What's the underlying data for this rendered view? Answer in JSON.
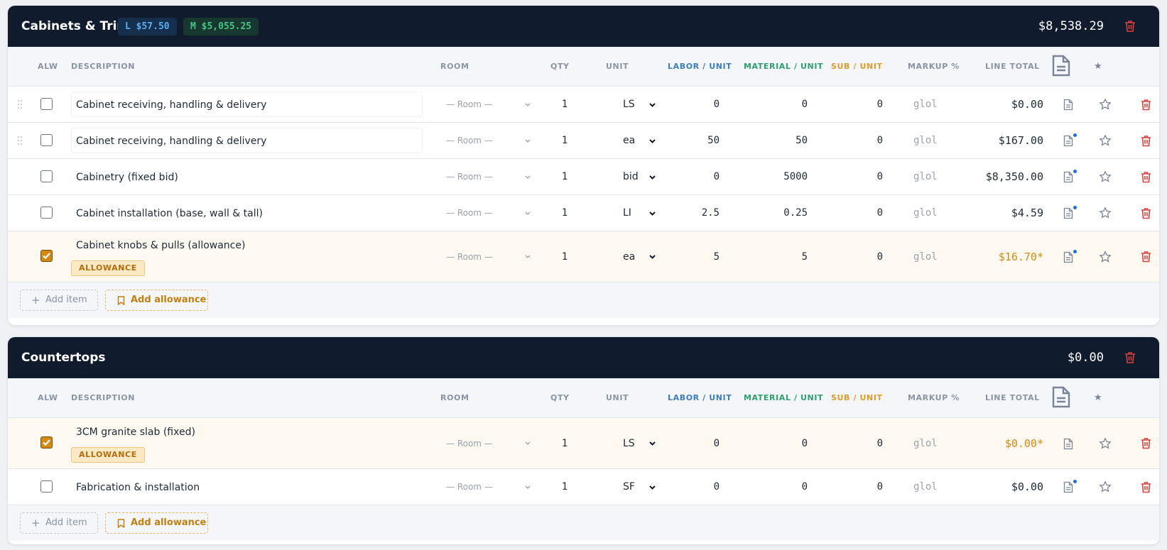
{
  "columns": {
    "alw": "ALW",
    "description": "DESCRIPTION",
    "room": "ROOM",
    "qty": "QTY",
    "unit": "UNIT",
    "labor": "LABOR / UNIT",
    "material": "MATERIAL / UNIT",
    "sub": "SUB / UNIT",
    "markup": "MARKUP %",
    "total": "LINE TOTAL",
    "star": "★"
  },
  "colors": {
    "header_bg": "#101b2d",
    "labor": "#3b7ec0",
    "material": "#2f9e6e",
    "sub": "#dd9c2c",
    "allowance": "#d38a12",
    "delete": "#d9413f"
  },
  "sections": [
    {
      "title": "Cabinets & Trim",
      "labor_chip": "L $57.50",
      "material_chip": "M $5,055.25",
      "total": "$8,538.29",
      "add_item": "Add item",
      "add_allowance": "Add allowance",
      "rows": [
        {
          "checked": false,
          "desc": "Cabinet receiving, handling & delivery",
          "room": "— Room —",
          "qty": "1",
          "unit": "LS",
          "labor": "0",
          "material": "0",
          "sub": "0",
          "markup": "glol",
          "total": "$0.00",
          "note_dot": false,
          "drag": true,
          "allowance": false
        },
        {
          "checked": false,
          "desc": "Cabinet receiving, handling & delivery",
          "room": "— Room —",
          "qty": "1",
          "unit": "ea",
          "labor": "50",
          "material": "50",
          "sub": "0",
          "markup": "glol",
          "total": "$167.00",
          "note_dot": true,
          "drag": true,
          "allowance": false
        },
        {
          "checked": false,
          "desc": "Cabinetry (fixed bid)",
          "room": "— Room —",
          "qty": "1",
          "unit": "bid",
          "labor": "0",
          "material": "5000",
          "sub": "0",
          "markup": "glol",
          "total": "$8,350.00",
          "note_dot": true,
          "drag": false,
          "allowance": false
        },
        {
          "checked": false,
          "desc": "Cabinet installation (base, wall & tall)",
          "room": "— Room —",
          "qty": "1",
          "unit": "LI",
          "labor": "2.5",
          "material": "0.25",
          "sub": "0",
          "markup": "glol",
          "total": "$4.59",
          "note_dot": true,
          "drag": false,
          "allowance": false
        },
        {
          "checked": true,
          "desc": "Cabinet knobs & pulls (allowance)",
          "badge": "ALLOWANCE",
          "room": "— Room —",
          "qty": "1",
          "unit": "ea",
          "labor": "5",
          "material": "5",
          "sub": "0",
          "markup": "glol",
          "total": "$16.70*",
          "note_dot": true,
          "drag": false,
          "allowance": true
        }
      ]
    },
    {
      "title": "Countertops",
      "total": "$0.00",
      "add_item": "Add item",
      "add_allowance": "Add allowance",
      "rows": [
        {
          "checked": true,
          "desc": "3CM granite slab (fixed)",
          "badge": "ALLOWANCE",
          "room": "— Room —",
          "qty": "1",
          "unit": "LS",
          "labor": "0",
          "material": "0",
          "sub": "0",
          "markup": "glol",
          "total": "$0.00*",
          "note_dot": false,
          "drag": false,
          "allowance": true
        },
        {
          "checked": false,
          "desc": "Fabrication & installation",
          "room": "— Room —",
          "qty": "1",
          "unit": "SF",
          "labor": "0",
          "material": "0",
          "sub": "0",
          "markup": "glol",
          "total": "$0.00",
          "note_dot": true,
          "drag": false,
          "allowance": false
        }
      ]
    }
  ]
}
